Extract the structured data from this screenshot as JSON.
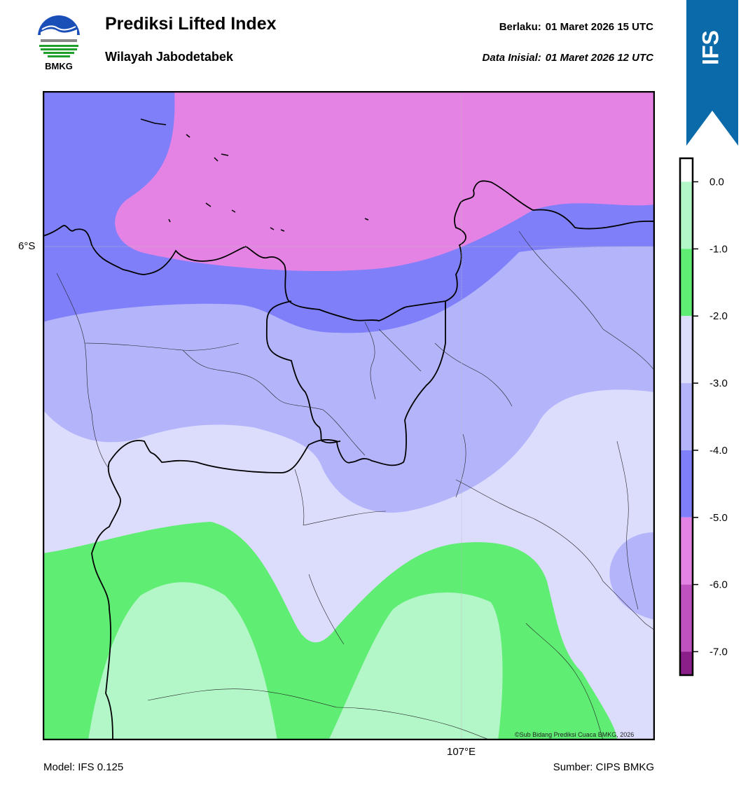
{
  "header": {
    "title": "Prediksi Lifted Index",
    "subtitle": "Wilayah Jabodetabek",
    "valid_label": "Berlaku:",
    "valid_time": "01 Maret 2026 15 UTC",
    "init_label": "Data Inisial:",
    "init_time": "01 Maret 2026 12 UTC"
  },
  "logo": {
    "text": "BMKG",
    "icon": "bmkg-logo"
  },
  "ribbon": {
    "text": "IFS",
    "color": "#0B6BAA"
  },
  "map": {
    "lat_label": "6°S",
    "lon_label": "107°E",
    "credit": "©Sub Bidang Prediksi Cuaca BMKG, 2026"
  },
  "colorbar": {
    "ticks": [
      "0.0",
      "-1.0",
      "-2.0",
      "-3.0",
      "-4.0",
      "-5.0",
      "-6.0",
      "-7.0"
    ],
    "levels": [
      {
        "min": -1.0,
        "max": 0.0,
        "color": "#B3F7C9"
      },
      {
        "min": -2.0,
        "max": -1.0,
        "color": "#5FED74"
      },
      {
        "min": -3.0,
        "max": -2.0,
        "color": "#DCDCFD"
      },
      {
        "min": -4.0,
        "max": -3.0,
        "color": "#B4B4FB"
      },
      {
        "min": -5.0,
        "max": -4.0,
        "color": "#7F7FFA"
      },
      {
        "min": -6.0,
        "max": -5.0,
        "color": "#E583E5"
      },
      {
        "min": -7.0,
        "max": -6.0,
        "color": "#C052C0"
      },
      {
        "min": -7.4,
        "max": -7.0,
        "color": "#8A1F8A"
      }
    ]
  },
  "footer": {
    "model": "Model: IFS 0.125",
    "source": "Sumber: CIPS BMKG"
  }
}
